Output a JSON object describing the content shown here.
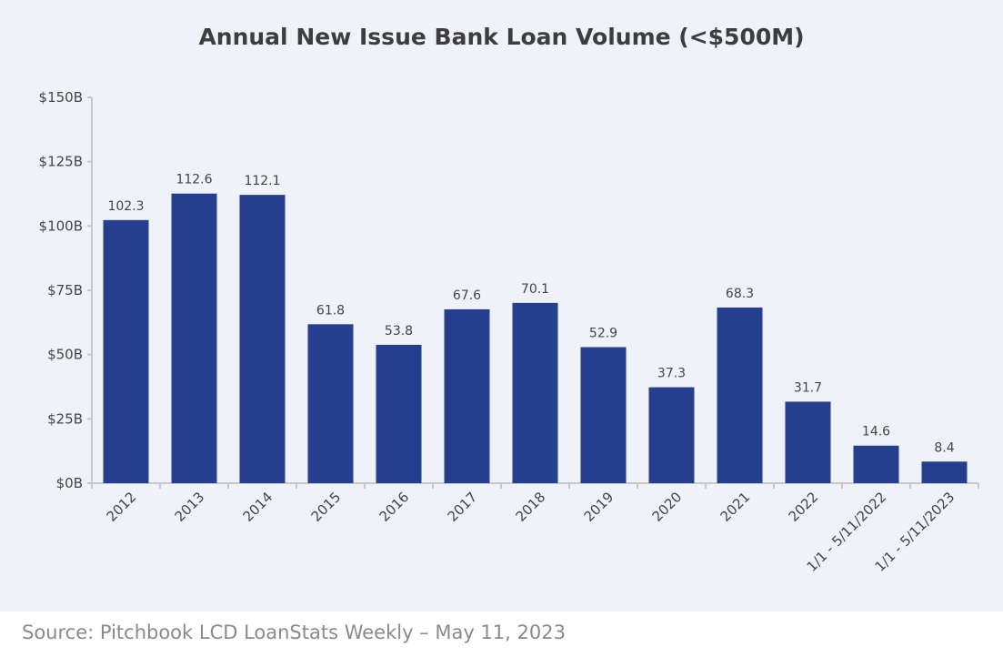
{
  "chart_data": {
    "type": "bar",
    "title": "Annual New Issue Bank Loan Volume (<$500M)",
    "categories": [
      "2012",
      "2013",
      "2014",
      "2015",
      "2016",
      "2017",
      "2018",
      "2019",
      "2020",
      "2021",
      "2022",
      "1/1 - 5/11/2022",
      "1/1 - 5/11/2023"
    ],
    "values": [
      102.3,
      112.6,
      112.1,
      61.8,
      53.8,
      67.6,
      70.1,
      52.9,
      37.3,
      68.3,
      31.7,
      14.6,
      8.4
    ],
    "data_labels": [
      "102.3",
      "112.6",
      "112.1",
      "61.8",
      "53.8",
      "67.6",
      "70.1",
      "52.9",
      "37.3",
      "68.3",
      "31.7",
      "14.6",
      "8.4"
    ],
    "y_ticks": [
      "$0B",
      "$25B",
      "$50B",
      "$75B",
      "$100B",
      "$125B",
      "$150B"
    ],
    "ylim": [
      0,
      150
    ],
    "xlabel": "",
    "ylabel": "",
    "grid": false,
    "bar_color": "#253f8e"
  },
  "source": "Source: Pitchbook LCD LoanStats Weekly – May 11, 2023"
}
